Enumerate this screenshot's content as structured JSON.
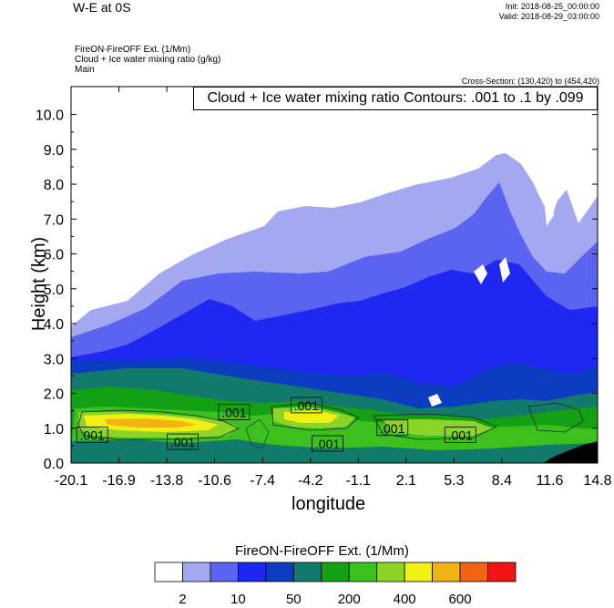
{
  "header": {
    "title": "W-E at 0S",
    "init": "Init: 2018-08-25_00:00:00",
    "valid": "Valid: 2018-08-29_03:00:00",
    "subtitle_lines": [
      "FireON-FireOFF Ext.  (1/Mm)",
      "Cloud + Ice water mixing ratio  (g/kg)",
      "Main"
    ],
    "cross_section": "Cross-Section: (130,420) to (454,420)",
    "contour_note": "Cloud + Ice water mixing ratio Contours: .001 to .1 by .099"
  },
  "chart_data": {
    "type": "heatmap",
    "xlabel": "longitude",
    "ylabel": "Height (km)",
    "x_ticks": [
      "-20.1",
      "-16.9",
      "-13.8",
      "-10.6",
      "-7.4",
      "-4.2",
      "-1.1",
      "2.1",
      "5.3",
      "8.4",
      "11.6",
      "14.8"
    ],
    "y_ticks": [
      "0.0",
      "1.0",
      "2.0",
      "3.0",
      "4.0",
      "5.0",
      "6.0",
      "7.0",
      "8.0",
      "9.0",
      "10.0"
    ],
    "xlim": [
      -20.1,
      14.8
    ],
    "ylim": [
      0,
      10.8
    ],
    "contour_labels": [
      {
        "text": ".001",
        "x": -18.7,
        "y": 0.8
      },
      {
        "text": ".001",
        "x": -12.7,
        "y": 0.6
      },
      {
        "text": ".001",
        "x": -9.3,
        "y": 1.45
      },
      {
        "text": ".001",
        "x": -4.5,
        "y": 1.65
      },
      {
        "text": ".001",
        "x": -3.1,
        "y": 0.55
      },
      {
        "text": ".001",
        "x": 1.2,
        "y": 1.0
      },
      {
        "text": ".001",
        "x": 5.7,
        "y": 0.8
      }
    ],
    "colorbar": {
      "title": "FireON-FireOFF Ext.  (1/Mm)",
      "colors": [
        "#ffffff",
        "#a4a8f0",
        "#5a64f0",
        "#1e28f0",
        "#0c3cc0",
        "#127a6a",
        "#14a014",
        "#3cc01e",
        "#8cd428",
        "#f0f014",
        "#f0b414",
        "#f06414",
        "#f01414"
      ],
      "tick_labels": [
        "2",
        "10",
        "50",
        "200",
        "400",
        "600"
      ]
    }
  }
}
